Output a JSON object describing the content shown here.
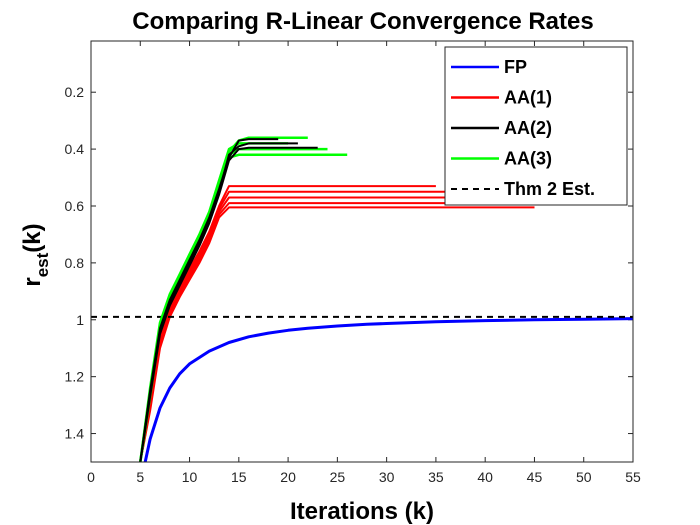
{
  "chart_data": {
    "type": "line",
    "title": "Comparing R-Linear Convergence Rates",
    "xlabel": "Iterations (k)",
    "ylabel_main": "r",
    "ylabel_sub": "est",
    "ylabel_tail": "(k)",
    "xlim": [
      0,
      55
    ],
    "ylim": [
      1.5,
      0.02
    ],
    "y_reversed": true,
    "xticks": [
      0,
      5,
      10,
      15,
      20,
      25,
      30,
      35,
      40,
      45,
      50,
      55
    ],
    "yticks": [
      0.2,
      0.4,
      0.6,
      0.8,
      1,
      1.2,
      1.4
    ],
    "ytick_labels": [
      "0.2",
      "0.4",
      "0.6",
      "0.8",
      "1",
      "1.2",
      "1.4"
    ],
    "legend_position": "top-right",
    "legend": [
      {
        "label": "FP",
        "color": "#0000ff",
        "dash": "solid"
      },
      {
        "label": "AA(1)",
        "color": "#ff0000",
        "dash": "solid"
      },
      {
        "label": "AA(2)",
        "color": "#000000",
        "dash": "solid"
      },
      {
        "label": "AA(3)",
        "color": "#00ff00",
        "dash": "solid"
      },
      {
        "label": "Thm 2 Est.",
        "color": "#000000",
        "dash": "dashed"
      }
    ],
    "series": [
      {
        "name": "FP",
        "color": "#0000ff",
        "width": 3,
        "x": [
          5.5,
          6,
          7,
          8,
          9,
          10,
          12,
          14,
          16,
          18,
          20,
          22,
          25,
          28,
          30,
          35,
          40,
          45,
          50,
          55
        ],
        "y": [
          1.5,
          1.42,
          1.31,
          1.24,
          1.19,
          1.155,
          1.11,
          1.08,
          1.06,
          1.047,
          1.037,
          1.03,
          1.022,
          1.016,
          1.013,
          1.007,
          1.003,
          1.0,
          0.998,
          0.996
        ]
      },
      {
        "name": "AA(1) run 1",
        "color": "#ff0000",
        "width": 2,
        "x": [
          5,
          6,
          7,
          8,
          9,
          10,
          11,
          12,
          13,
          14,
          35
        ],
        "y": [
          1.5,
          1.28,
          1.06,
          0.95,
          0.88,
          0.82,
          0.76,
          0.69,
          0.6,
          0.53,
          0.53
        ]
      },
      {
        "name": "AA(1) run 2",
        "color": "#ff0000",
        "width": 2,
        "x": [
          5,
          6,
          7,
          8,
          9,
          10,
          11,
          12,
          13,
          14,
          40
        ],
        "y": [
          1.5,
          1.29,
          1.07,
          0.96,
          0.89,
          0.83,
          0.77,
          0.7,
          0.61,
          0.55,
          0.55
        ]
      },
      {
        "name": "AA(1) run 3",
        "color": "#ff0000",
        "width": 2,
        "x": [
          5,
          6,
          7,
          8,
          9,
          10,
          11,
          12,
          13,
          14,
          42
        ],
        "y": [
          1.5,
          1.3,
          1.08,
          0.97,
          0.9,
          0.84,
          0.78,
          0.71,
          0.62,
          0.57,
          0.57
        ]
      },
      {
        "name": "AA(1) run 4",
        "color": "#ff0000",
        "width": 2,
        "x": [
          5,
          6,
          7,
          8,
          9,
          10,
          11,
          12,
          13,
          14,
          44
        ],
        "y": [
          1.5,
          1.31,
          1.09,
          0.98,
          0.91,
          0.85,
          0.79,
          0.72,
          0.63,
          0.59,
          0.59
        ]
      },
      {
        "name": "AA(1) run 5",
        "color": "#ff0000",
        "width": 2,
        "x": [
          5,
          6,
          7,
          8,
          9,
          10,
          11,
          12,
          13,
          14,
          45
        ],
        "y": [
          1.5,
          1.32,
          1.1,
          0.99,
          0.92,
          0.86,
          0.8,
          0.73,
          0.64,
          0.605,
          0.605
        ]
      },
      {
        "name": "AA(2) run 1",
        "color": "#000000",
        "width": 2,
        "x": [
          5,
          6,
          7,
          8,
          9,
          10,
          11,
          12,
          13,
          14,
          15,
          16,
          21
        ],
        "y": [
          1.5,
          1.26,
          1.04,
          0.94,
          0.87,
          0.8,
          0.73,
          0.65,
          0.55,
          0.42,
          0.39,
          0.38,
          0.38
        ]
      },
      {
        "name": "AA(2) run 2",
        "color": "#000000",
        "width": 2,
        "x": [
          5,
          6,
          7,
          8,
          9,
          10,
          11,
          12,
          13,
          14,
          15,
          16,
          23
        ],
        "y": [
          1.5,
          1.27,
          1.05,
          0.95,
          0.88,
          0.81,
          0.74,
          0.66,
          0.56,
          0.44,
          0.4,
          0.395,
          0.395
        ]
      },
      {
        "name": "AA(2) run 3",
        "color": "#000000",
        "width": 2,
        "x": [
          5,
          6,
          7,
          8,
          9,
          10,
          11,
          12,
          13,
          14,
          15,
          16,
          19
        ],
        "y": [
          1.5,
          1.25,
          1.03,
          0.93,
          0.86,
          0.79,
          0.72,
          0.64,
          0.54,
          0.43,
          0.37,
          0.365,
          0.365
        ]
      },
      {
        "name": "AA(3) run 1",
        "color": "#00ff00",
        "width": 2.5,
        "x": [
          5,
          6,
          7,
          8,
          9,
          10,
          11,
          12,
          13,
          14,
          15,
          16,
          22
        ],
        "y": [
          1.5,
          1.25,
          1.02,
          0.92,
          0.85,
          0.78,
          0.71,
          0.63,
          0.52,
          0.41,
          0.37,
          0.36,
          0.36
        ]
      },
      {
        "name": "AA(3) run 2",
        "color": "#00ff00",
        "width": 2.5,
        "x": [
          5,
          6,
          7,
          8,
          9,
          10,
          11,
          12,
          13,
          14,
          15,
          16,
          24
        ],
        "y": [
          1.5,
          1.26,
          1.03,
          0.93,
          0.86,
          0.79,
          0.72,
          0.64,
          0.53,
          0.42,
          0.4,
          0.4,
          0.4
        ]
      },
      {
        "name": "AA(3) run 3",
        "color": "#00ff00",
        "width": 2.5,
        "x": [
          5,
          6,
          7,
          8,
          9,
          10,
          11,
          12,
          13,
          14,
          15,
          16,
          26
        ],
        "y": [
          1.5,
          1.27,
          1.04,
          0.94,
          0.87,
          0.8,
          0.73,
          0.65,
          0.54,
          0.43,
          0.42,
          0.42,
          0.42
        ]
      },
      {
        "name": "AA(3) run 4",
        "color": "#00ff00",
        "width": 2.5,
        "x": [
          5,
          6,
          7,
          8,
          9,
          10,
          11,
          12,
          13,
          14,
          15,
          16,
          20
        ],
        "y": [
          1.5,
          1.24,
          1.01,
          0.91,
          0.84,
          0.77,
          0.7,
          0.62,
          0.51,
          0.4,
          0.38,
          0.38,
          0.38
        ]
      },
      {
        "name": "Thm 2 Est.",
        "color": "#000000",
        "width": 2,
        "dash": "6,5",
        "x": [
          0,
          55
        ],
        "y": [
          0.99,
          0.99
        ]
      }
    ]
  }
}
